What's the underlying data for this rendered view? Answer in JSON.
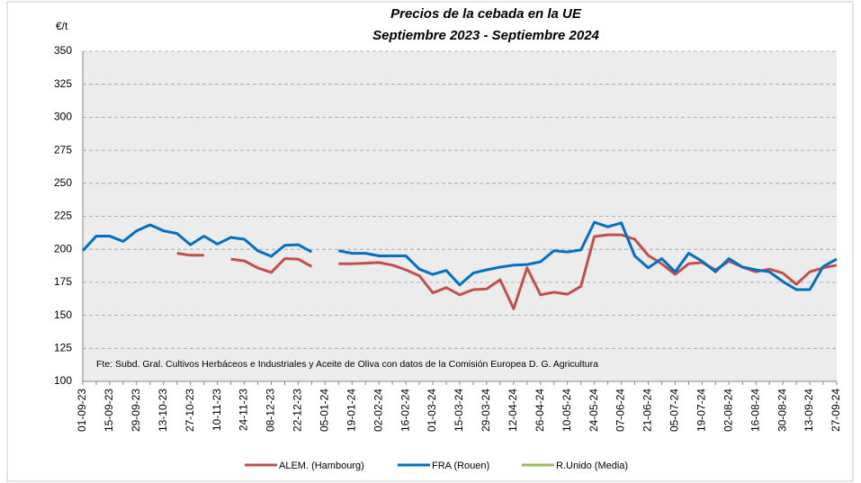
{
  "chart_data": {
    "type": "line",
    "title": "Precios de la cebada en la UE",
    "subtitle": "Septiembre 2023 - Septiembre 2024",
    "y_label": "€/t",
    "annotation": "Fte: Subd. Gral. Cultivos Herbáceos e Industriales y Aceite de Oliva con datos de la Comisión Europea D. G. Agricultura",
    "categories": [
      "01-09-23",
      null,
      "15-09-23",
      null,
      "29-09-23",
      null,
      "13-10-23",
      null,
      "27-10-23",
      null,
      "10-11-23",
      null,
      "24-11-23",
      null,
      "08-12-23",
      null,
      "22-12-23",
      null,
      "05-01-24",
      null,
      "19-01-24",
      null,
      "02-02-24",
      null,
      "16-02-24",
      null,
      "01-03-24",
      null,
      "15-03-24",
      null,
      "29-03-24",
      null,
      "12-04-24",
      null,
      "26-04-24",
      null,
      "10-05-24",
      null,
      "24-05-24",
      null,
      "07-06-24",
      null,
      "21-06-24",
      null,
      "05-07-24",
      null,
      "19-07-24",
      null,
      "02-08-24",
      null,
      "16-08-24",
      null,
      "30-08-24",
      null,
      "13-09-24",
      null,
      "27-09-24"
    ],
    "series": [
      {
        "name": "ALEM. (Hambourg)",
        "color": "#c0504d",
        "values": [
          null,
          null,
          null,
          null,
          null,
          null,
          null,
          197,
          195.5,
          195.5,
          null,
          192.6,
          191.3,
          186,
          182.5,
          193,
          192.6,
          187,
          null,
          189,
          189,
          189.5,
          190,
          188,
          184.5,
          180,
          167,
          171,
          165.5,
          169.5,
          170,
          177,
          155,
          186,
          165.5,
          167.5,
          166,
          172,
          209.7,
          211,
          211,
          207.6,
          195.4,
          189,
          181,
          189,
          190,
          184.5,
          191,
          186.5,
          183,
          185,
          182,
          173.5,
          183,
          186,
          188
        ]
      },
      {
        "name": "FRA (Rouen)",
        "color": "#0070c0",
        "values": [
          199,
          210,
          210,
          206,
          214,
          218.5,
          214,
          212,
          203.5,
          210,
          204,
          209,
          207.6,
          199,
          194.7,
          203,
          203.5,
          198,
          null,
          199,
          197,
          197,
          195,
          195,
          195,
          185,
          181,
          184,
          173,
          182,
          184.5,
          186.5,
          188,
          188.5,
          190.6,
          199,
          198,
          199.5,
          220.5,
          217,
          220,
          195,
          186,
          193,
          183,
          197,
          191,
          183,
          193,
          186.5,
          184.5,
          183,
          175.6,
          169.5,
          169.5,
          187,
          192.6
        ]
      },
      {
        "name": "R.Unido (Media)",
        "color": "#9bbb59",
        "values": [
          null,
          null,
          null,
          null,
          null,
          null,
          null,
          null,
          null,
          null,
          null,
          null,
          null,
          null,
          null,
          null,
          null,
          null,
          null,
          null,
          null,
          null,
          null,
          null,
          null,
          null,
          null,
          null,
          null,
          null,
          null,
          null,
          null,
          null,
          null,
          null,
          null,
          null,
          null,
          null,
          null,
          null,
          null,
          null,
          null,
          null,
          null,
          null,
          null,
          null,
          null,
          null,
          null,
          null,
          null,
          null,
          null
        ]
      }
    ],
    "ylim": [
      100,
      350
    ],
    "yticks": [
      100,
      125,
      150,
      175,
      200,
      225,
      250,
      275,
      300,
      325,
      350
    ],
    "grid": true
  }
}
